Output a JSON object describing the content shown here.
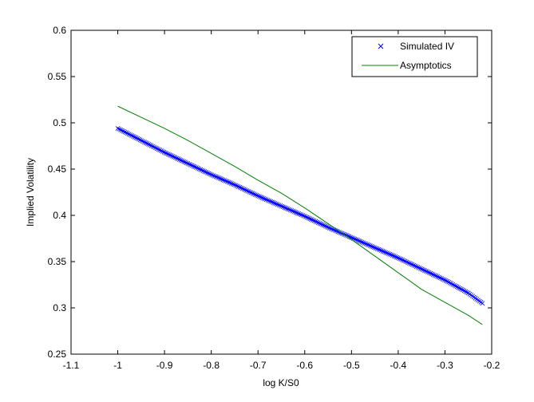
{
  "chart_data": {
    "type": "line",
    "xlabel": "log K/S0",
    "ylabel": "Implied Volatility",
    "xlim": [
      -1.1,
      -0.2
    ],
    "ylim": [
      0.25,
      0.6
    ],
    "xticks": [
      -1.1,
      -1,
      -0.9,
      -0.8,
      -0.7,
      -0.6,
      -0.5,
      -0.4,
      -0.3,
      -0.2
    ],
    "xtick_labels": [
      "-1.1",
      "-1",
      "-0.9",
      "-0.8",
      "-0.7",
      "-0.6",
      "-0.5",
      "-0.4",
      "-0.3",
      "-0.2"
    ],
    "yticks": [
      0.25,
      0.3,
      0.35,
      0.4,
      0.45,
      0.5,
      0.55,
      0.6
    ],
    "ytick_labels": [
      "0.25",
      "0.3",
      "0.35",
      "0.4",
      "0.45",
      "0.5",
      "0.55",
      "0.6"
    ],
    "grid": false,
    "legend_position": "top-right",
    "series": [
      {
        "name": "Simulated IV",
        "style": "markers",
        "marker": "x",
        "color": "#0000ff",
        "x": [
          -1.0,
          -0.95,
          -0.9,
          -0.85,
          -0.8,
          -0.75,
          -0.7,
          -0.65,
          -0.6,
          -0.55,
          -0.5,
          -0.45,
          -0.4,
          -0.35,
          -0.3,
          -0.25,
          -0.22
        ],
        "y": [
          0.494,
          0.481,
          0.468,
          0.456,
          0.444,
          0.433,
          0.421,
          0.41,
          0.399,
          0.387,
          0.376,
          0.365,
          0.354,
          0.342,
          0.33,
          0.316,
          0.305
        ]
      },
      {
        "name": "Asymptotics",
        "style": "line",
        "color": "#008000",
        "x": [
          -1.0,
          -0.95,
          -0.9,
          -0.85,
          -0.8,
          -0.75,
          -0.7,
          -0.65,
          -0.6,
          -0.55,
          -0.5,
          -0.45,
          -0.4,
          -0.35,
          -0.3,
          -0.25,
          -0.22
        ],
        "y": [
          0.518,
          0.506,
          0.494,
          0.481,
          0.467,
          0.453,
          0.438,
          0.424,
          0.408,
          0.391,
          0.374,
          0.356,
          0.338,
          0.32,
          0.306,
          0.292,
          0.282
        ]
      }
    ]
  }
}
